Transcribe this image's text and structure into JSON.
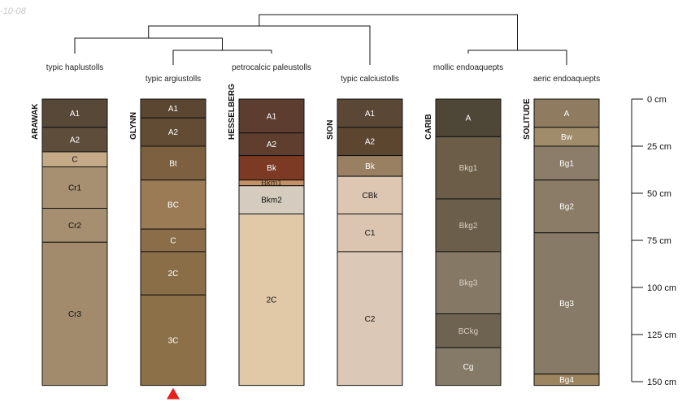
{
  "chart_data": {
    "type": "soil-profile-sketch",
    "date_stamp": "-10-08",
    "depth_axis": {
      "unit": "cm",
      "range": [
        0,
        150
      ],
      "ticks": [
        {
          "value": 0,
          "label": "0 cm"
        },
        {
          "value": 25,
          "label": "25 cm"
        },
        {
          "value": 50,
          "label": "50 cm"
        },
        {
          "value": 75,
          "label": "75 cm"
        },
        {
          "value": 100,
          "label": "100 cm"
        },
        {
          "value": 125,
          "label": "125 cm"
        },
        {
          "value": 150,
          "label": "150 cm"
        }
      ]
    },
    "profiles": [
      {
        "name": "ARAWAK",
        "classification": "typic haplustolls",
        "truncated": false,
        "horizons": [
          {
            "name": "A1",
            "top": 0,
            "bottom": 15,
            "color": "#574838",
            "text": "#ffffff"
          },
          {
            "name": "A2",
            "top": 15,
            "bottom": 28,
            "color": "#5e4d3b",
            "text": "#ffffff"
          },
          {
            "name": "C",
            "top": 28,
            "bottom": 36,
            "color": "#c5aa87",
            "text": "#111111"
          },
          {
            "name": "Cr1",
            "top": 36,
            "bottom": 58,
            "color": "#a79071",
            "text": "#111111"
          },
          {
            "name": "Cr2",
            "top": 58,
            "bottom": 76,
            "color": "#a68f70",
            "text": "#111111"
          },
          {
            "name": "Cr3",
            "top": 76,
            "bottom": 152,
            "color": "#a28b6c",
            "text": "#111111"
          }
        ]
      },
      {
        "name": "GLYNN",
        "classification": "typic argiustolls",
        "truncated": true,
        "horizons": [
          {
            "name": "A1",
            "top": 0,
            "bottom": 10,
            "color": "#5a4631",
            "text": "#ffffff"
          },
          {
            "name": "A2",
            "top": 10,
            "bottom": 25,
            "color": "#624c34",
            "text": "#ffffff"
          },
          {
            "name": "Bt",
            "top": 25,
            "bottom": 43,
            "color": "#7c603f",
            "text": "#ffffff"
          },
          {
            "name": "BC",
            "top": 43,
            "bottom": 69,
            "color": "#9b7b55",
            "text": "#ffffff"
          },
          {
            "name": "C",
            "top": 69,
            "bottom": 81,
            "color": "#8b6d4a",
            "text": "#ffffff"
          },
          {
            "name": "2C",
            "top": 81,
            "bottom": 104,
            "color": "#8a6e48",
            "text": "#ffffff"
          },
          {
            "name": "3C",
            "top": 104,
            "bottom": 152,
            "color": "#8b7048",
            "text": "#ffffff"
          }
        ]
      },
      {
        "name": "HESSELBERG",
        "classification": "petrocalcic paleustolls",
        "truncated": false,
        "horizons": [
          {
            "name": "A1",
            "top": 0,
            "bottom": 18,
            "color": "#5c3d30",
            "text": "#ffffff"
          },
          {
            "name": "A2",
            "top": 18,
            "bottom": 30,
            "color": "#5f3e2f",
            "text": "#ffffff"
          },
          {
            "name": "Bk",
            "top": 30,
            "bottom": 43,
            "color": "#7c3a24",
            "text": "#ffffff"
          },
          {
            "name": "Bkm1",
            "top": 43,
            "bottom": 46,
            "color": "#c39167",
            "text": "#3a2a1a"
          },
          {
            "name": "Bkm2",
            "top": 46,
            "bottom": 61,
            "color": "#d5cbbf",
            "text": "#111111"
          },
          {
            "name": "2C",
            "top": 61,
            "bottom": 152,
            "color": "#e1c9a7",
            "text": "#111111"
          }
        ]
      },
      {
        "name": "SION",
        "classification": "typic calciustolls",
        "truncated": false,
        "horizons": [
          {
            "name": "A1",
            "top": 0,
            "bottom": 15,
            "color": "#5a4736",
            "text": "#ffffff"
          },
          {
            "name": "A2",
            "top": 15,
            "bottom": 30,
            "color": "#5d4630",
            "text": "#ffffff"
          },
          {
            "name": "Bk",
            "top": 30,
            "bottom": 41,
            "color": "#9a8062",
            "text": "#ffffff"
          },
          {
            "name": "CBk",
            "top": 41,
            "bottom": 61,
            "color": "#ddc7b3",
            "text": "#111111"
          },
          {
            "name": "C1",
            "top": 61,
            "bottom": 81,
            "color": "#dbc5b1",
            "text": "#111111"
          },
          {
            "name": "C2",
            "top": 81,
            "bottom": 152,
            "color": "#dcc8b6",
            "text": "#111111"
          }
        ]
      },
      {
        "name": "CARIB",
        "classification": "mollic endoaquepts",
        "truncated": false,
        "horizons": [
          {
            "name": "A",
            "top": 0,
            "bottom": 20,
            "color": "#4e4636",
            "text": "#ffffff"
          },
          {
            "name": "Bkg1",
            "top": 20,
            "bottom": 53,
            "color": "#6b5d48",
            "text": "#d8d0c4"
          },
          {
            "name": "Bkg2",
            "top": 53,
            "bottom": 81,
            "color": "#6b5e4a",
            "text": "#d8d0c4"
          },
          {
            "name": "Bkg3",
            "top": 81,
            "bottom": 114,
            "color": "#857966",
            "text": "#d8d0c4"
          },
          {
            "name": "BCkg",
            "top": 114,
            "bottom": 132,
            "color": "#6e6350",
            "text": "#d8d0c4"
          },
          {
            "name": "Cg",
            "top": 132,
            "bottom": 152,
            "color": "#857a68",
            "text": "#ffffff"
          }
        ]
      },
      {
        "name": "SOLITUDE",
        "classification": "aeric endoaquepts",
        "truncated": false,
        "horizons": [
          {
            "name": "A",
            "top": 0,
            "bottom": 15,
            "color": "#8e7b60",
            "text": "#ffffff"
          },
          {
            "name": "Bw",
            "top": 15,
            "bottom": 25,
            "color": "#a08c6a",
            "text": "#ffffff"
          },
          {
            "name": "Bg1",
            "top": 25,
            "bottom": 43,
            "color": "#8b7d69",
            "text": "#ffffff"
          },
          {
            "name": "Bg2",
            "top": 43,
            "bottom": 71,
            "color": "#8a7c67",
            "text": "#ffffff"
          },
          {
            "name": "Bg3",
            "top": 71,
            "bottom": 146,
            "color": "#877a66",
            "text": "#ffffff"
          },
          {
            "name": "Bg4",
            "top": 146,
            "bottom": 152,
            "color": "#9c855f",
            "text": "#ffffff"
          }
        ]
      }
    ],
    "dendrogram": "((ARAWAK,(GLYNN,HESSELBERG)),SION),(CARIB,SOLITUDE)"
  }
}
